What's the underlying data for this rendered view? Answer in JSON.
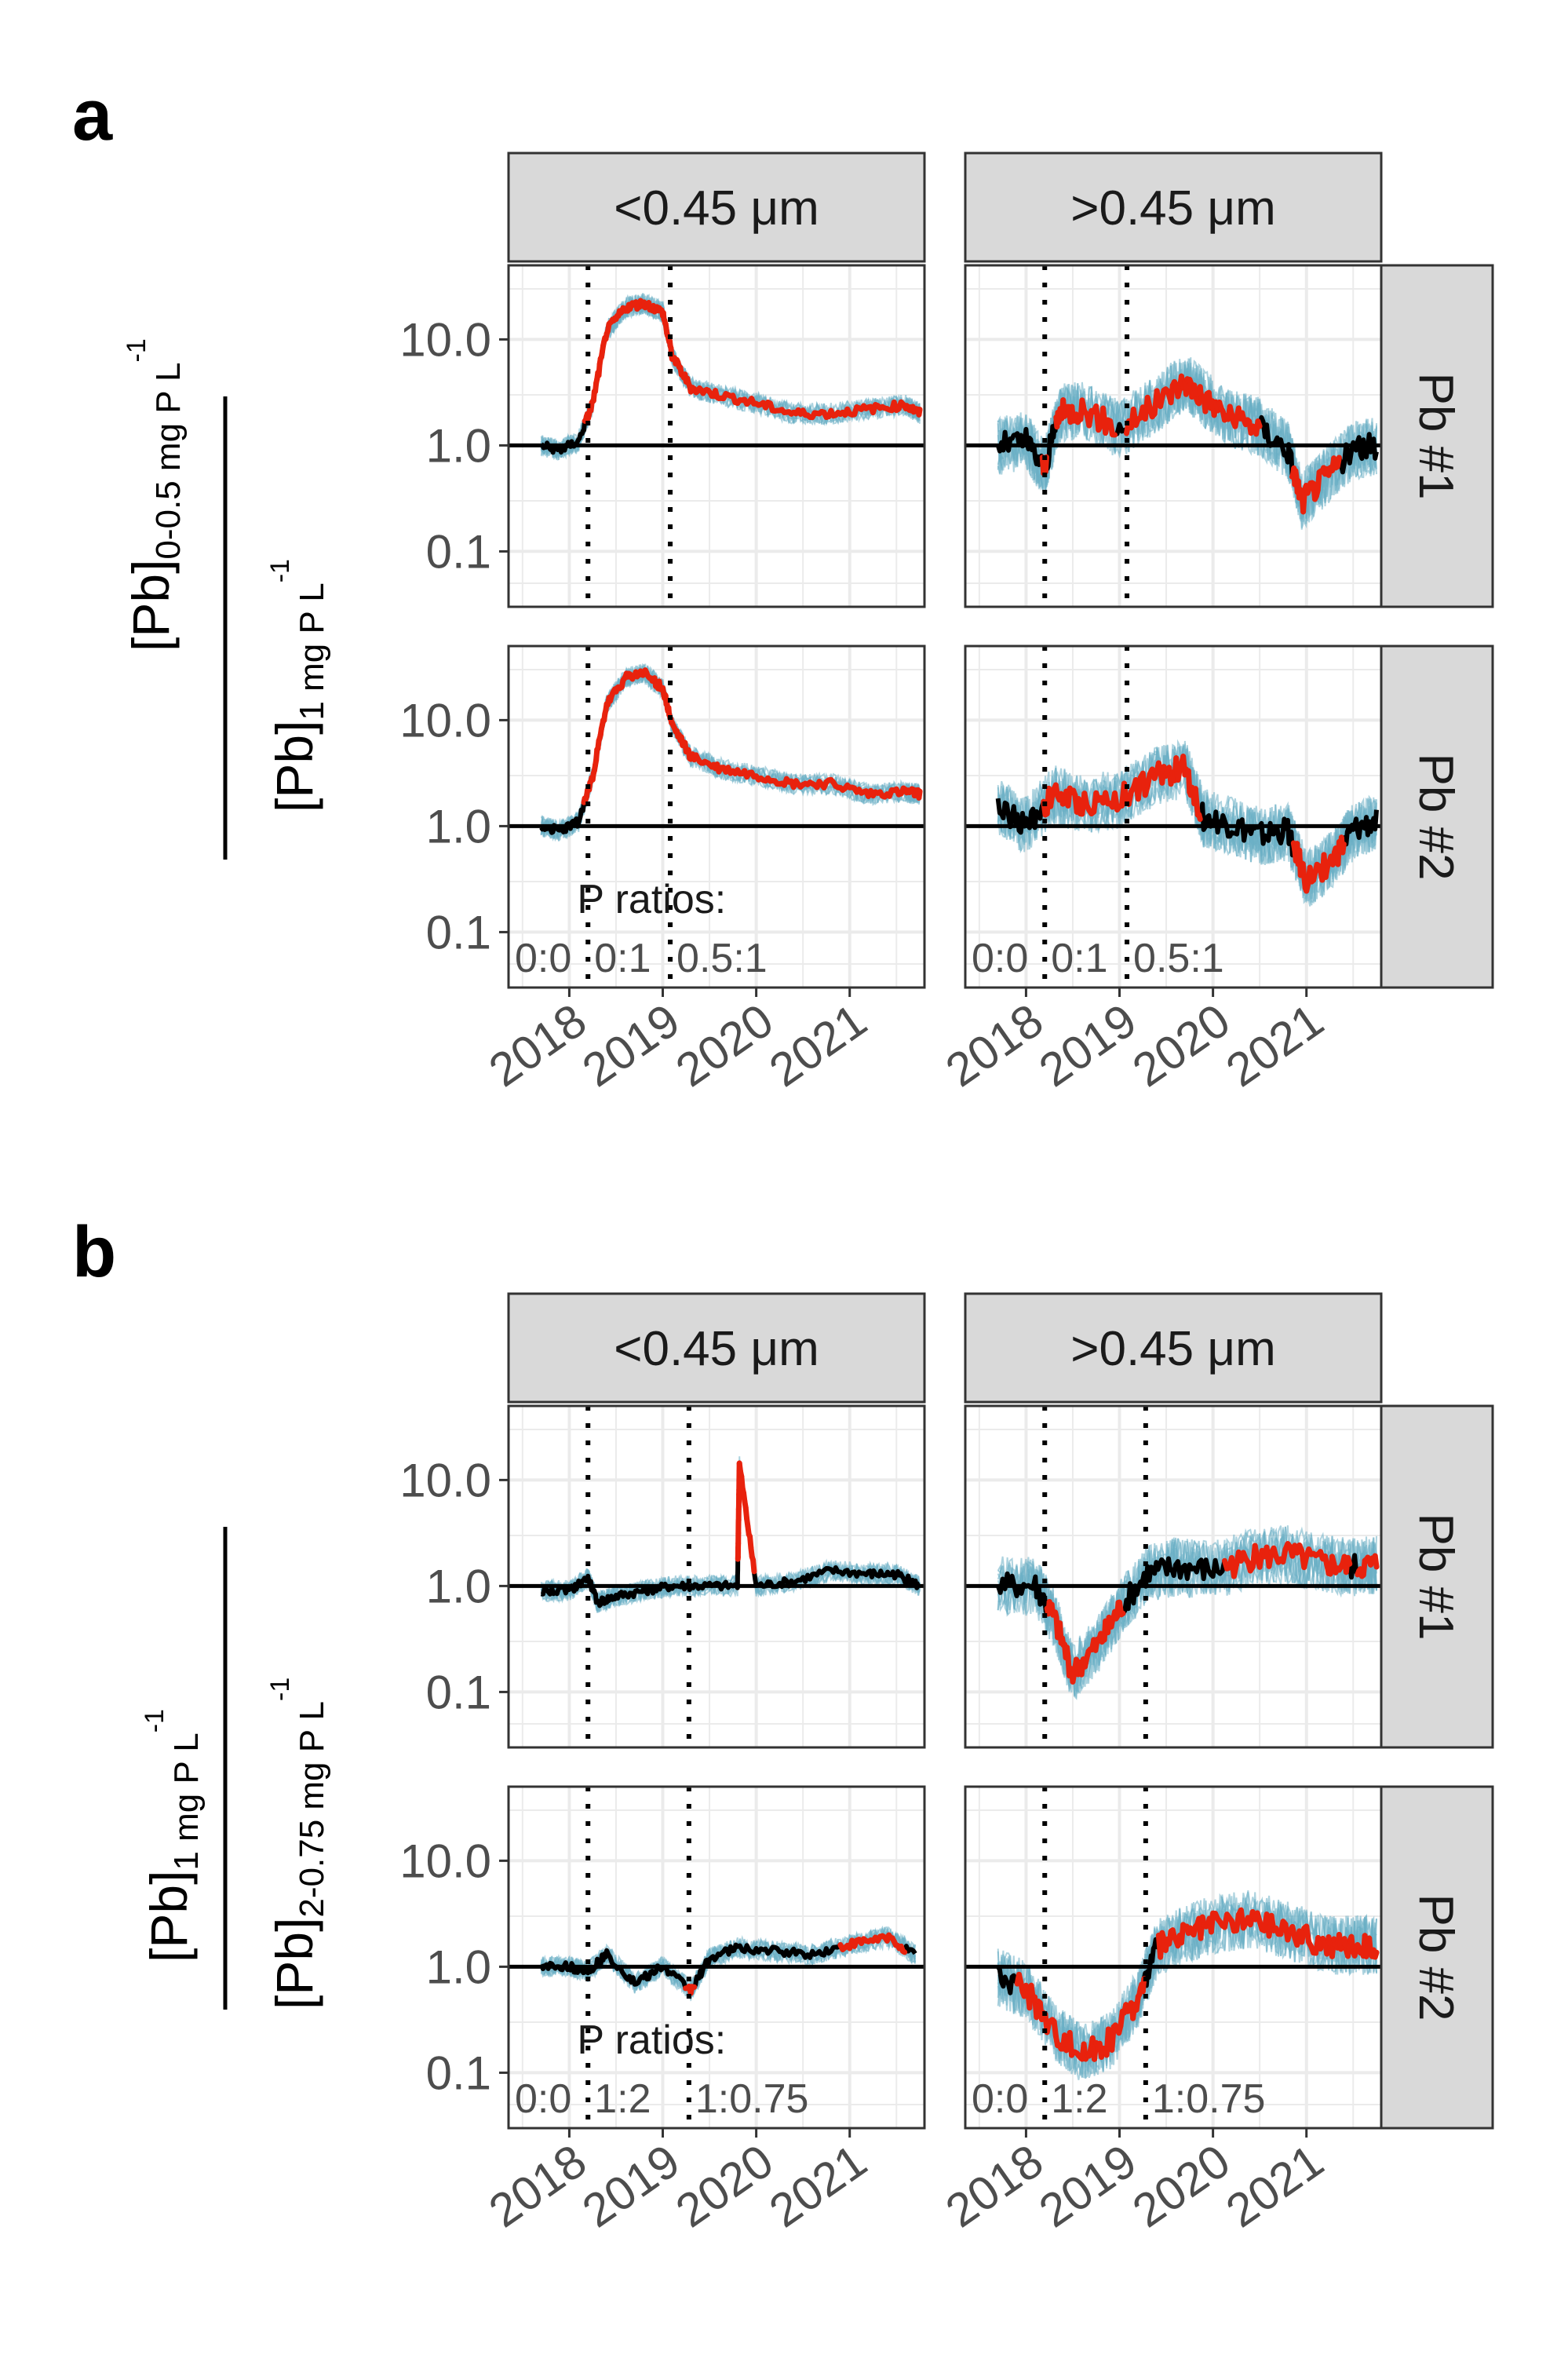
{
  "figure": {
    "panels": [
      {
        "letter": "a",
        "ylabel_num": "[Pb]",
        "ylabel_num_sub": "0-0.5 mg P L",
        "ylabel_den": "[Pb]",
        "ylabel_den_sub": "1 mg P L",
        "ylabel_sup": "-1",
        "ratio_title": "P ratios:",
        "ratio_labels": [
          "0:0",
          "0:1",
          "0.5:1"
        ]
      },
      {
        "letter": "b",
        "ylabel_num": "[Pb]",
        "ylabel_num_sub": "1 mg P L",
        "ylabel_den": "[Pb]",
        "ylabel_den_sub": "2-0.75 mg P L",
        "ylabel_sup": "-1",
        "ratio_title": "P ratios:",
        "ratio_labels": [
          "0:0",
          "1:2",
          "1:0.75"
        ]
      }
    ],
    "col_strips": [
      "<0.45 μm",
      ">0.45 μm"
    ],
    "row_strips": [
      "Pb #1",
      "Pb #2"
    ],
    "colors": {
      "median": "#000000",
      "significant": "#e8220d",
      "ensemble": "#6aaec4",
      "grid": "#ebebeb",
      "strip_bg": "#d9d9d9",
      "frame": "#333333"
    }
  },
  "chart_data": [
    {
      "type": "line",
      "panel": "a",
      "y_scale": "log10",
      "ylim": [
        0.03,
        50
      ],
      "yticks": [
        0.1,
        1.0,
        10.0
      ],
      "ytick_labels": [
        "0.1",
        "1.0",
        "10.0"
      ],
      "xlim": [
        2017.35,
        2021.8
      ],
      "xticks": [
        2018,
        2019,
        2020,
        2021
      ],
      "xtick_labels": [
        "2018",
        "2019",
        "2020",
        "2021"
      ],
      "vlines": [
        2018.2,
        2019.08
      ],
      "hline": 1.0,
      "facets": [
        {
          "col": "<0.45 μm",
          "row": "Pb #1",
          "x": [
            2017.7,
            2017.9,
            2018.1,
            2018.25,
            2018.4,
            2018.6,
            2018.8,
            2019.0,
            2019.1,
            2019.3,
            2019.6,
            2020.0,
            2020.4,
            2020.8,
            2021.2,
            2021.6,
            2021.75
          ],
          "y": [
            1.0,
            0.9,
            1.1,
            2.5,
            12,
            20,
            22,
            18,
            7,
            3.5,
            3.0,
            2.5,
            2.0,
            2.0,
            2.2,
            2.4,
            2.0
          ]
        },
        {
          "col": ">0.45 μm",
          "row": "Pb #1",
          "x": [
            2017.7,
            2018.0,
            2018.2,
            2018.35,
            2018.6,
            2019.0,
            2019.4,
            2019.7,
            2019.9,
            2020.2,
            2020.5,
            2020.8,
            2020.95,
            2021.2,
            2021.5,
            2021.75
          ],
          "y": [
            1.0,
            1.1,
            0.6,
            2.0,
            2.2,
            1.4,
            2.5,
            4.0,
            2.8,
            1.8,
            1.5,
            0.9,
            0.3,
            0.5,
            0.9,
            1.0
          ]
        },
        {
          "col": "<0.45 μm",
          "row": "Pb #2",
          "x": [
            2017.7,
            2017.9,
            2018.1,
            2018.25,
            2018.4,
            2018.6,
            2018.8,
            2019.0,
            2019.1,
            2019.3,
            2019.6,
            2020.0,
            2020.4,
            2020.8,
            2021.2,
            2021.6,
            2021.75
          ],
          "y": [
            1.0,
            0.9,
            1.1,
            3.0,
            14,
            25,
            28,
            20,
            9,
            4.5,
            3.5,
            3.0,
            2.5,
            2.5,
            2.0,
            2.1,
            2.0
          ]
        },
        {
          "col": ">0.45 μm",
          "row": "Pb #2",
          "x": [
            2017.7,
            2018.0,
            2018.3,
            2018.6,
            2019.0,
            2019.4,
            2019.7,
            2019.9,
            2020.2,
            2020.5,
            2020.8,
            2021.0,
            2021.3,
            2021.5,
            2021.75
          ],
          "y": [
            1.5,
            1.0,
            2.0,
            1.6,
            1.8,
            3.0,
            3.5,
            1.2,
            1.0,
            0.8,
            0.9,
            0.3,
            0.5,
            0.9,
            1.1
          ]
        }
      ]
    },
    {
      "type": "line",
      "panel": "b",
      "y_scale": "log10",
      "ylim": [
        0.03,
        50
      ],
      "yticks": [
        0.1,
        1.0,
        10.0
      ],
      "ytick_labels": [
        "0.1",
        "1.0",
        "10.0"
      ],
      "xlim": [
        2017.35,
        2021.8
      ],
      "xticks": [
        2018,
        2019,
        2020,
        2021
      ],
      "xtick_labels": [
        "2018",
        "2019",
        "2020",
        "2021"
      ],
      "vlines": [
        2018.2,
        2019.28
      ],
      "hline": 1.0,
      "facets": [
        {
          "col": "<0.45 μm",
          "row": "Pb #1",
          "x": [
            2017.7,
            2018.0,
            2018.2,
            2018.3,
            2018.5,
            2018.8,
            2019.1,
            2019.4,
            2019.8,
            2019.82,
            2020.0,
            2020.4,
            2020.8,
            2021.2,
            2021.5,
            2021.75
          ],
          "y": [
            0.9,
            0.9,
            1.2,
            0.7,
            0.8,
            0.9,
            1.0,
            1.0,
            1.0,
            14,
            1.0,
            1.1,
            1.4,
            1.3,
            1.3,
            1.0
          ]
        },
        {
          "col": ">0.45 μm",
          "row": "Pb #1",
          "x": [
            2017.7,
            2018.1,
            2018.3,
            2018.5,
            2018.8,
            2019.0,
            2019.3,
            2019.6,
            2020.0,
            2020.4,
            2020.8,
            2021.2,
            2021.5,
            2021.75
          ],
          "y": [
            1.0,
            1.0,
            0.5,
            0.15,
            0.3,
            0.6,
            1.3,
            1.5,
            1.4,
            1.8,
            2.0,
            1.6,
            1.5,
            1.6
          ]
        },
        {
          "col": "<0.45 μm",
          "row": "Pb #2",
          "x": [
            2017.7,
            2018.0,
            2018.2,
            2018.4,
            2018.7,
            2019.0,
            2019.3,
            2019.5,
            2019.8,
            2020.2,
            2020.6,
            2021.0,
            2021.4,
            2021.7
          ],
          "y": [
            1.0,
            1.0,
            0.9,
            1.3,
            0.7,
            1.0,
            0.6,
            1.2,
            1.5,
            1.4,
            1.3,
            1.6,
            1.9,
            1.3
          ]
        },
        {
          "col": ">0.45 μm",
          "row": "Pb #2",
          "x": [
            2017.7,
            2018.0,
            2018.3,
            2018.6,
            2018.9,
            2019.2,
            2019.4,
            2019.7,
            2020.0,
            2020.4,
            2020.8,
            2021.2,
            2021.5,
            2021.75
          ],
          "y": [
            0.8,
            0.6,
            0.25,
            0.15,
            0.2,
            0.5,
            1.5,
            2.0,
            2.5,
            2.8,
            2.2,
            1.6,
            1.6,
            1.6
          ]
        }
      ]
    }
  ]
}
